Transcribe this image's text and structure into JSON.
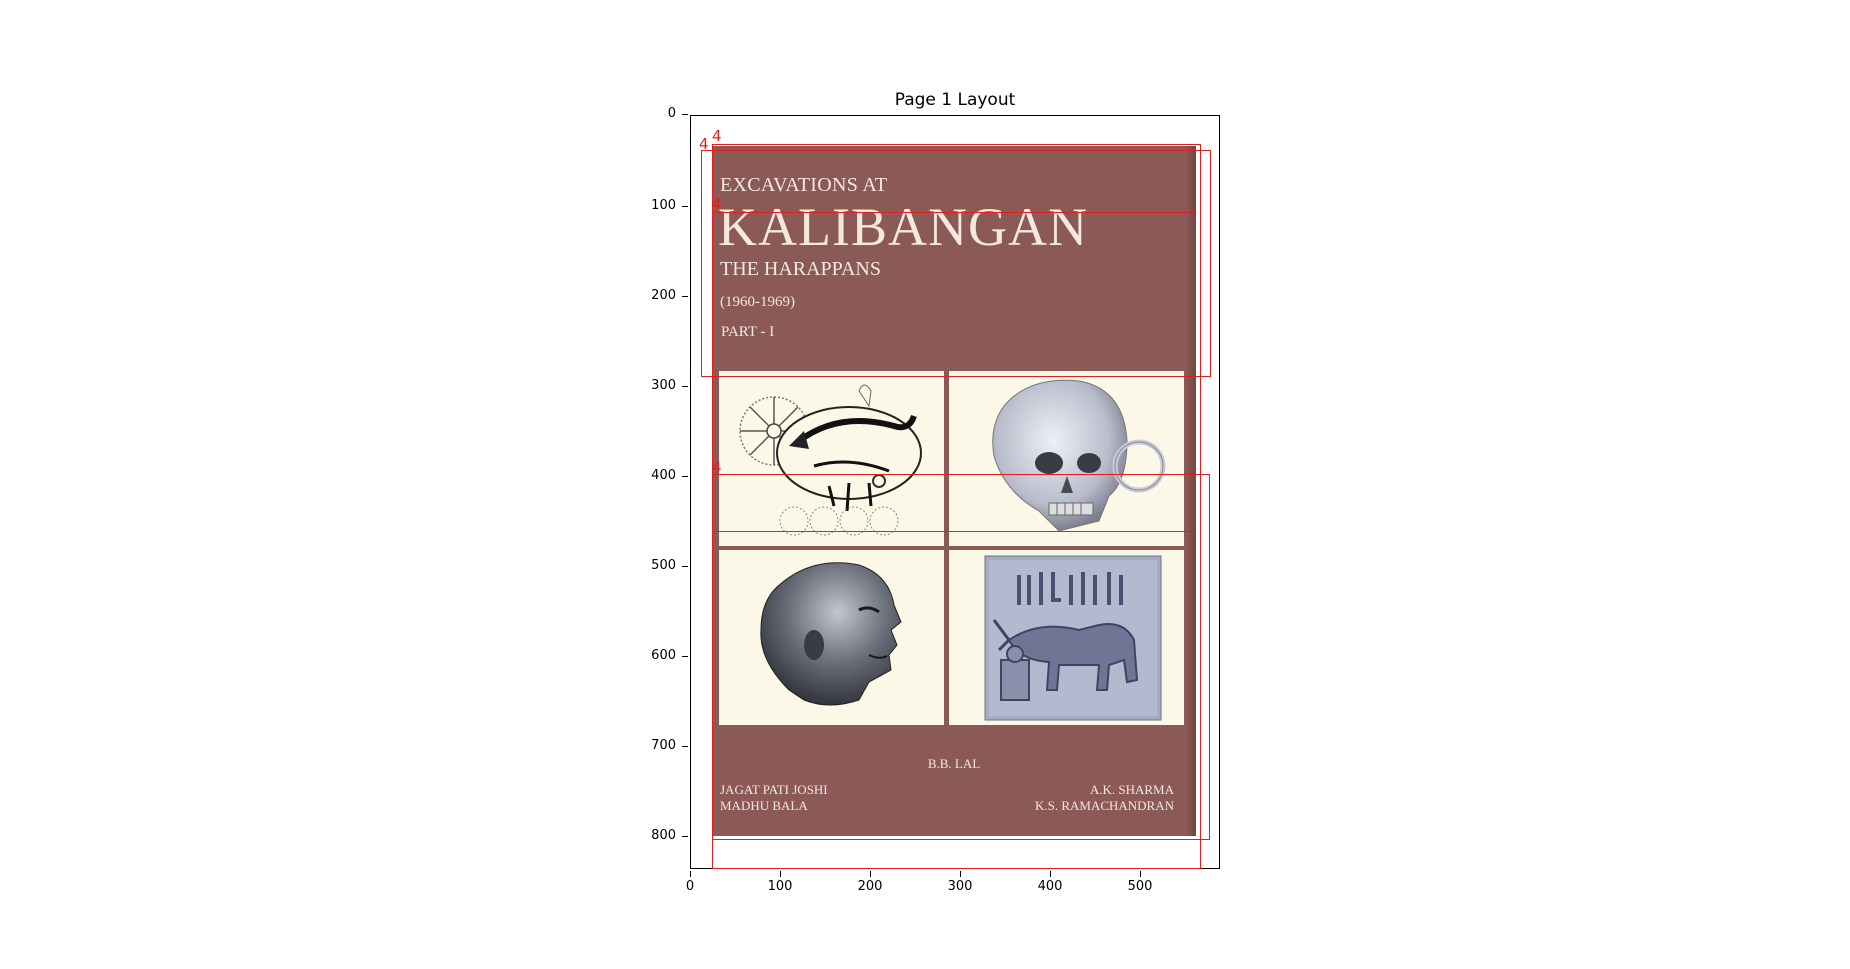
{
  "figure": {
    "title": "Page 1 Layout",
    "y_ticks": [
      "0",
      "100",
      "200",
      "300",
      "400",
      "500",
      "600",
      "700",
      "800"
    ],
    "x_ticks": [
      "0",
      "100",
      "200",
      "300",
      "400",
      "500"
    ]
  },
  "cover": {
    "line1": "EXCAVATIONS AT",
    "line2": "KALIBANGAN",
    "line3": "THE HARAPPANS",
    "line4": "(1960-1969)",
    "line5": "PART - I",
    "author_main": "B.B. LAL",
    "author_left_1": "JAGAT PATI JOSHI",
    "author_left_2": "MADHU BALA",
    "author_right_1": "A.K. SHARMA",
    "author_right_2": "K.S. RAMACHANDRAN",
    "background_color": "#8b5a57"
  },
  "layout_boxes": [
    {
      "label": "4"
    },
    {
      "label": "4"
    },
    {
      "label": "4"
    },
    {
      "label": "4"
    }
  ],
  "colors": {
    "box_color": "#e02020"
  }
}
